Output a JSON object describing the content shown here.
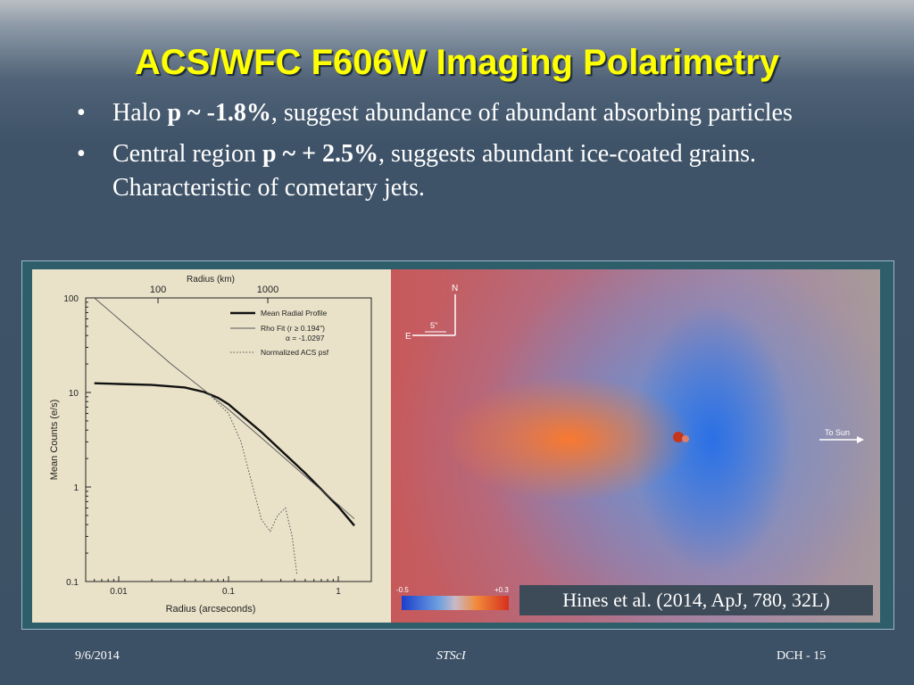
{
  "slide": {
    "title": "ACS/WFC F606W Imaging Polarimetry",
    "bullets": [
      {
        "pre": "Halo ",
        "bold": "p ~ -1.8%",
        "post": ", suggest abundance of abundant absorbing particles"
      },
      {
        "pre": "Central region ",
        "bold": "p ~ + 2.5%",
        "post": ", suggests abundant ice-coated grains.  Characteristic of cometary jets."
      }
    ],
    "bullet_char": "•",
    "caption": "Hines et al. (2014, ApJ, 780, 32L)",
    "footer": {
      "date": "9/6/2014",
      "center": "STScI",
      "page": "DCH - 15"
    }
  },
  "image_panel": {
    "compass": {
      "north": "N",
      "east": "E",
      "scale": "5\""
    },
    "sun_label": "To Sun",
    "colorbar": {
      "min": "-0.5",
      "max": "+0.3"
    }
  },
  "chart_data": {
    "type": "line",
    "x_scale": "log",
    "y_scale": "log",
    "xlabel": "Radius (arcseconds)",
    "ylabel": "Mean Counts (e/s)",
    "top_axis_label": "Radius (km)",
    "top_ticks": [
      {
        "label": "100",
        "x": 0.0228
      },
      {
        "label": "1000",
        "x": 0.228
      }
    ],
    "xlim": [
      0.005,
      2.0
    ],
    "ylim": [
      0.1,
      100
    ],
    "x_ticks": [
      {
        "v": 0.01,
        "label": "0.01"
      },
      {
        "v": 0.1,
        "label": "0.1"
      },
      {
        "v": 1,
        "label": "1"
      }
    ],
    "y_ticks": [
      {
        "v": 100,
        "label": "100"
      },
      {
        "v": 10,
        "label": "10"
      },
      {
        "v": 1,
        "label": "1"
      },
      {
        "v": 0.1,
        "label": "0.1"
      }
    ],
    "legend": {
      "position": "top-right",
      "entries": [
        {
          "label": "Mean Radial Profile",
          "style": "thick"
        },
        {
          "label": "Rho Fit (r ≥ 0.194\")",
          "style": "thin",
          "note": "α = -1.0297"
        },
        {
          "label": "Normalized ACS psf",
          "style": "dotted"
        }
      ]
    },
    "series": [
      {
        "name": "Mean Radial Profile",
        "style": "thick",
        "x": [
          0.006,
          0.01,
          0.02,
          0.04,
          0.06,
          0.08,
          0.1,
          0.2,
          0.5,
          1.0,
          1.4
        ],
        "y": [
          12.5,
          12.3,
          12.0,
          11.3,
          10.1,
          8.8,
          7.5,
          3.8,
          1.4,
          0.62,
          0.39
        ]
      },
      {
        "name": "Rho Fit (r ≥ 0.194\")",
        "style": "thin",
        "x": [
          0.006,
          0.01,
          0.03,
          0.07,
          0.1,
          0.2,
          0.5,
          1.0,
          1.4
        ],
        "y": [
          100,
          60,
          20,
          9.2,
          6.6,
          3.3,
          1.3,
          0.65,
          0.46
        ]
      },
      {
        "name": "Normalized ACS psf",
        "style": "dotted",
        "x": [
          0.07,
          0.1,
          0.13,
          0.16,
          0.2,
          0.24,
          0.28,
          0.33,
          0.38,
          0.42
        ],
        "y": [
          9.0,
          6.0,
          3.0,
          1.2,
          0.45,
          0.34,
          0.5,
          0.6,
          0.3,
          0.12
        ]
      }
    ]
  }
}
